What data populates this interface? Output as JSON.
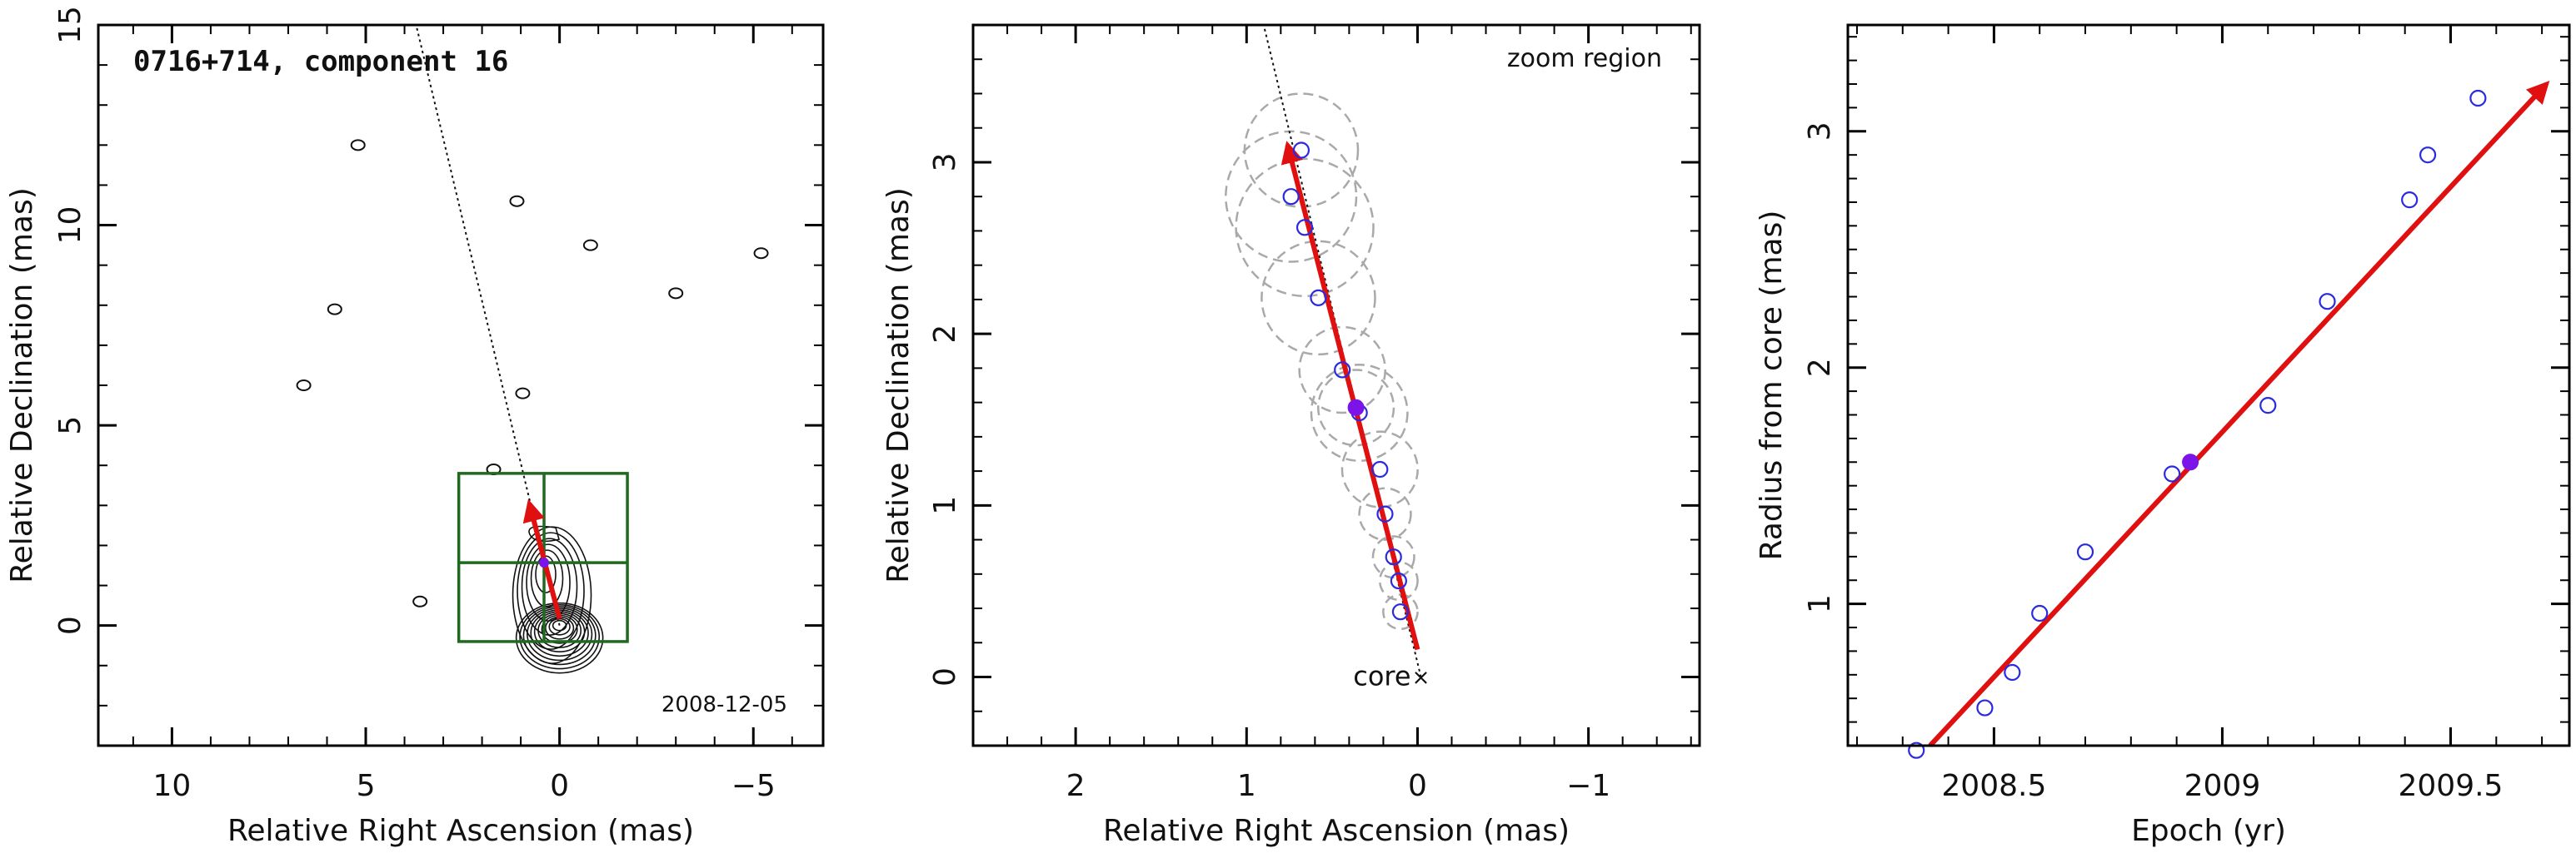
{
  "colors": {
    "track": "#e01010",
    "points_open": "#2a2ae0",
    "point_filled": "#7b14e8",
    "box": "#1f6a1f",
    "circles": "#a9a9a9",
    "contours": "#111111"
  },
  "chart_data": [
    {
      "type": "contour",
      "title": "0716+714, component 16",
      "date": "2008-12-05",
      "xlabel": "Relative Right Ascension (mas)",
      "ylabel": "Relative Declination (mas)",
      "xlim": [
        11.9,
        -6.8
      ],
      "ylim": [
        -3.0,
        15.0
      ],
      "x_direction": "reversed",
      "xticks": [
        "10",
        "5",
        "0",
        "−5"
      ],
      "yticks": [
        "0",
        "5",
        "10",
        "15"
      ],
      "grid": false,
      "core_position": [
        0,
        0
      ],
      "component_position": [
        0.4,
        1.57
      ],
      "track_ra": [
        0.0,
        0.78
      ],
      "track_dec": [
        0.17,
        3.05
      ],
      "extrapolated_line_ra": [
        0.0,
        3.7
      ],
      "extrapolated_line_dec": [
        0.0,
        15.0
      ],
      "zoom_box_ra": [
        2.6,
        -1.75
      ],
      "zoom_box_dec": [
        -0.4,
        3.8
      ],
      "isolated_contours_ra": [
        5.2,
        6.6,
        5.8,
        1.1,
        0.95,
        -0.8,
        -3.0,
        -5.2,
        3.6,
        1.7
      ],
      "isolated_contours_dec": [
        12.0,
        6.0,
        7.9,
        10.6,
        5.8,
        9.5,
        8.3,
        9.3,
        0.6,
        3.9
      ]
    },
    {
      "type": "scatter",
      "annotation": "zoom region",
      "core_label": "core",
      "xlabel": "Relative Right Ascension (mas)",
      "ylabel": "Relative Declination (mas)",
      "xlim": [
        2.6,
        -1.65
      ],
      "ylim": [
        -0.4,
        3.8
      ],
      "x_direction": "reversed",
      "xticks": [
        "2",
        "1",
        "0",
        "−1"
      ],
      "yticks": [
        "0",
        "1",
        "2",
        "3"
      ],
      "grid": false,
      "series": [
        {
          "marker": "open-circle",
          "x": [
            0.68,
            0.74,
            0.66,
            0.58,
            0.44,
            0.34,
            0.22,
            0.19,
            0.14,
            0.11,
            0.1
          ],
          "y": [
            3.07,
            2.8,
            2.62,
            2.21,
            1.79,
            1.54,
            1.21,
            0.95,
            0.7,
            0.56,
            0.38
          ]
        },
        {
          "marker": "filled-circle",
          "x": [
            0.36
          ],
          "y": [
            1.57
          ]
        }
      ],
      "component_sizes": [
        {
          "x": 0.68,
          "y": 3.07,
          "r": 0.33
        },
        {
          "x": 0.74,
          "y": 2.8,
          "r": 0.38
        },
        {
          "x": 0.66,
          "y": 2.62,
          "r": 0.4
        },
        {
          "x": 0.58,
          "y": 2.21,
          "r": 0.33
        },
        {
          "x": 0.44,
          "y": 1.79,
          "r": 0.25
        },
        {
          "x": 0.36,
          "y": 1.57,
          "r": 0.22
        },
        {
          "x": 0.34,
          "y": 1.54,
          "r": 0.28
        },
        {
          "x": 0.22,
          "y": 1.21,
          "r": 0.22
        },
        {
          "x": 0.19,
          "y": 0.95,
          "r": 0.15
        },
        {
          "x": 0.14,
          "y": 0.7,
          "r": 0.12
        },
        {
          "x": 0.11,
          "y": 0.56,
          "r": 0.11
        },
        {
          "x": 0.1,
          "y": 0.38,
          "r": 0.1
        }
      ],
      "track_ra": [
        0.0,
        0.76
      ],
      "track_dec": [
        0.16,
        3.1
      ],
      "extrapolated_line_ra": [
        -0.02,
        0.9
      ],
      "extrapolated_line_dec": [
        0.0,
        3.8
      ],
      "core_position": [
        -0.02,
        0.0
      ]
    },
    {
      "type": "scatter",
      "xlabel": "Epoch (yr)",
      "ylabel": "Radius from core (mas)",
      "xlim": [
        2008.18,
        2009.76
      ],
      "ylim": [
        0.4,
        3.45
      ],
      "xticks": [
        "2008.5",
        "2009",
        "2009.5"
      ],
      "yticks": [
        "1",
        "2",
        "3"
      ],
      "grid": false,
      "series": [
        {
          "marker": "open-circle",
          "x": [
            2008.33,
            2008.48,
            2008.54,
            2008.6,
            2008.7,
            2008.89,
            2009.1,
            2009.23,
            2009.41,
            2009.45,
            2009.56
          ],
          "y": [
            0.38,
            0.56,
            0.71,
            0.96,
            1.22,
            1.55,
            1.84,
            2.28,
            2.71,
            2.9,
            3.14
          ]
        },
        {
          "marker": "filled-circle",
          "x": [
            2008.93
          ],
          "y": [
            1.6
          ]
        }
      ],
      "fit_line_x": [
        2008.36,
        2009.71
      ],
      "fit_line_y": [
        0.4,
        3.2
      ]
    }
  ]
}
